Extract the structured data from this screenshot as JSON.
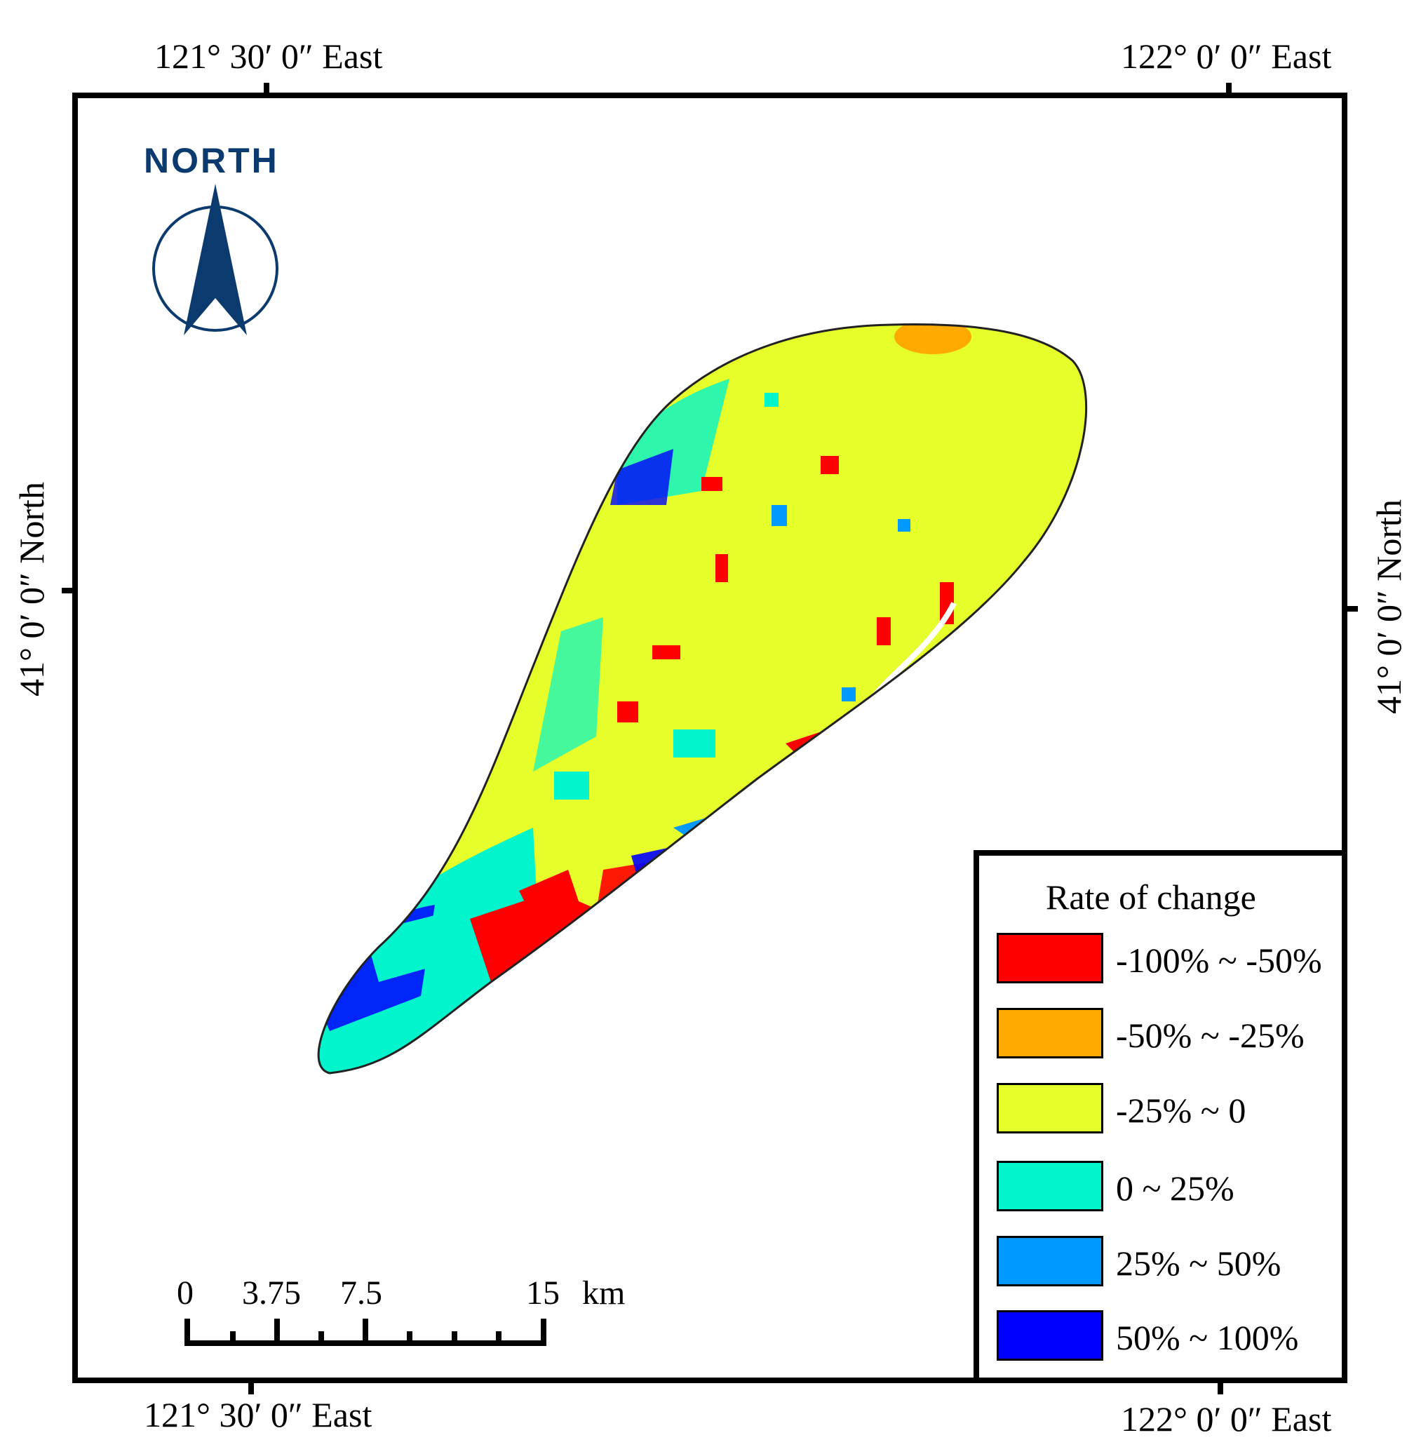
{
  "axes": {
    "top_left": "121° 30′ 0″ East",
    "top_right": "122° 0′ 0″ East",
    "bottom_left": "121° 30′ 0″ East",
    "bottom_right": "122° 0′ 0″ East",
    "left": "41° 0′ 0″ North",
    "right": "41° 0′ 0″ North"
  },
  "north_arrow": {
    "label": "NORTH",
    "icon": "north-arrow-icon",
    "color": "#0b3a6e"
  },
  "scale_bar": {
    "ticks": [
      "0",
      "3.75",
      "7.5",
      "15"
    ],
    "unit": "km"
  },
  "legend": {
    "title": "Rate of change",
    "items": [
      {
        "label": "-100% ~ -50%",
        "color": "#ff0000"
      },
      {
        "label": "-50% ~ -25%",
        "color": "#ffaa00"
      },
      {
        "label": "-25% ~ 0",
        "color": "#e6ff2a"
      },
      {
        "label": "0 ~ 25%",
        "color": "#00f5cc"
      },
      {
        "label": "25% ~ 50%",
        "color": "#0099ff"
      },
      {
        "label": "50% ~ 100%",
        "color": "#0000ff"
      }
    ]
  }
}
